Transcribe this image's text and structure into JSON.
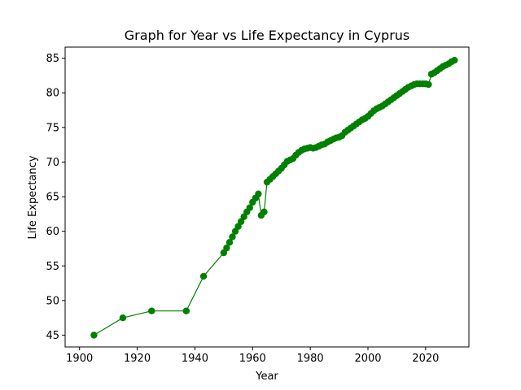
{
  "chart_data": {
    "type": "line",
    "title": "Graph for Year vs Life Expectancy in Cyprus",
    "xlabel": "Year",
    "ylabel": "Life Expectancy",
    "xlim": [
      1895,
      2035
    ],
    "ylim": [
      43.3,
      86.6
    ],
    "xticks": [
      1900,
      1920,
      1940,
      1960,
      1980,
      2000,
      2020
    ],
    "yticks": [
      45,
      50,
      55,
      60,
      65,
      70,
      75,
      80,
      85
    ],
    "grid": false,
    "line_color": "#008000",
    "marker_color": "#008000",
    "x": [
      1905,
      1915,
      1925,
      1937,
      1943,
      1950,
      1951,
      1952,
      1953,
      1954,
      1955,
      1956,
      1957,
      1958,
      1959,
      1960,
      1961,
      1962,
      1963,
      1964,
      1965,
      1966,
      1967,
      1968,
      1969,
      1970,
      1971,
      1972,
      1973,
      1974,
      1975,
      1976,
      1977,
      1978,
      1979,
      1980,
      1981,
      1982,
      1983,
      1984,
      1985,
      1986,
      1987,
      1988,
      1989,
      1990,
      1991,
      1992,
      1993,
      1994,
      1995,
      1996,
      1997,
      1998,
      1999,
      2000,
      2001,
      2002,
      2003,
      2004,
      2005,
      2006,
      2007,
      2008,
      2009,
      2010,
      2011,
      2012,
      2013,
      2014,
      2015,
      2016,
      2017,
      2018,
      2019,
      2020,
      2021,
      2022,
      2023,
      2024,
      2025,
      2026,
      2027,
      2028,
      2029,
      2030
    ],
    "values": [
      45.0,
      47.5,
      48.5,
      48.5,
      53.5,
      56.9,
      57.6,
      58.4,
      59.2,
      60.0,
      60.7,
      61.4,
      62.1,
      62.8,
      63.4,
      64.2,
      64.8,
      65.4,
      62.3,
      62.8,
      67.1,
      67.5,
      67.9,
      68.3,
      68.7,
      69.1,
      69.6,
      70.1,
      70.3,
      70.5,
      71.0,
      71.4,
      71.7,
      71.9,
      72.0,
      72.1,
      72.0,
      72.1,
      72.3,
      72.5,
      72.6,
      72.9,
      73.1,
      73.3,
      73.5,
      73.6,
      73.8,
      74.3,
      74.6,
      74.9,
      75.2,
      75.5,
      75.8,
      76.1,
      76.3,
      76.6,
      77.0,
      77.4,
      77.7,
      77.9,
      78.1,
      78.4,
      78.7,
      79.0,
      79.3,
      79.6,
      79.9,
      80.2,
      80.5,
      80.8,
      81.0,
      81.2,
      81.3,
      81.3,
      81.3,
      81.3,
      81.2,
      82.7,
      82.9,
      83.2,
      83.5,
      83.8,
      84.0,
      84.2,
      84.5,
      84.7
    ]
  }
}
